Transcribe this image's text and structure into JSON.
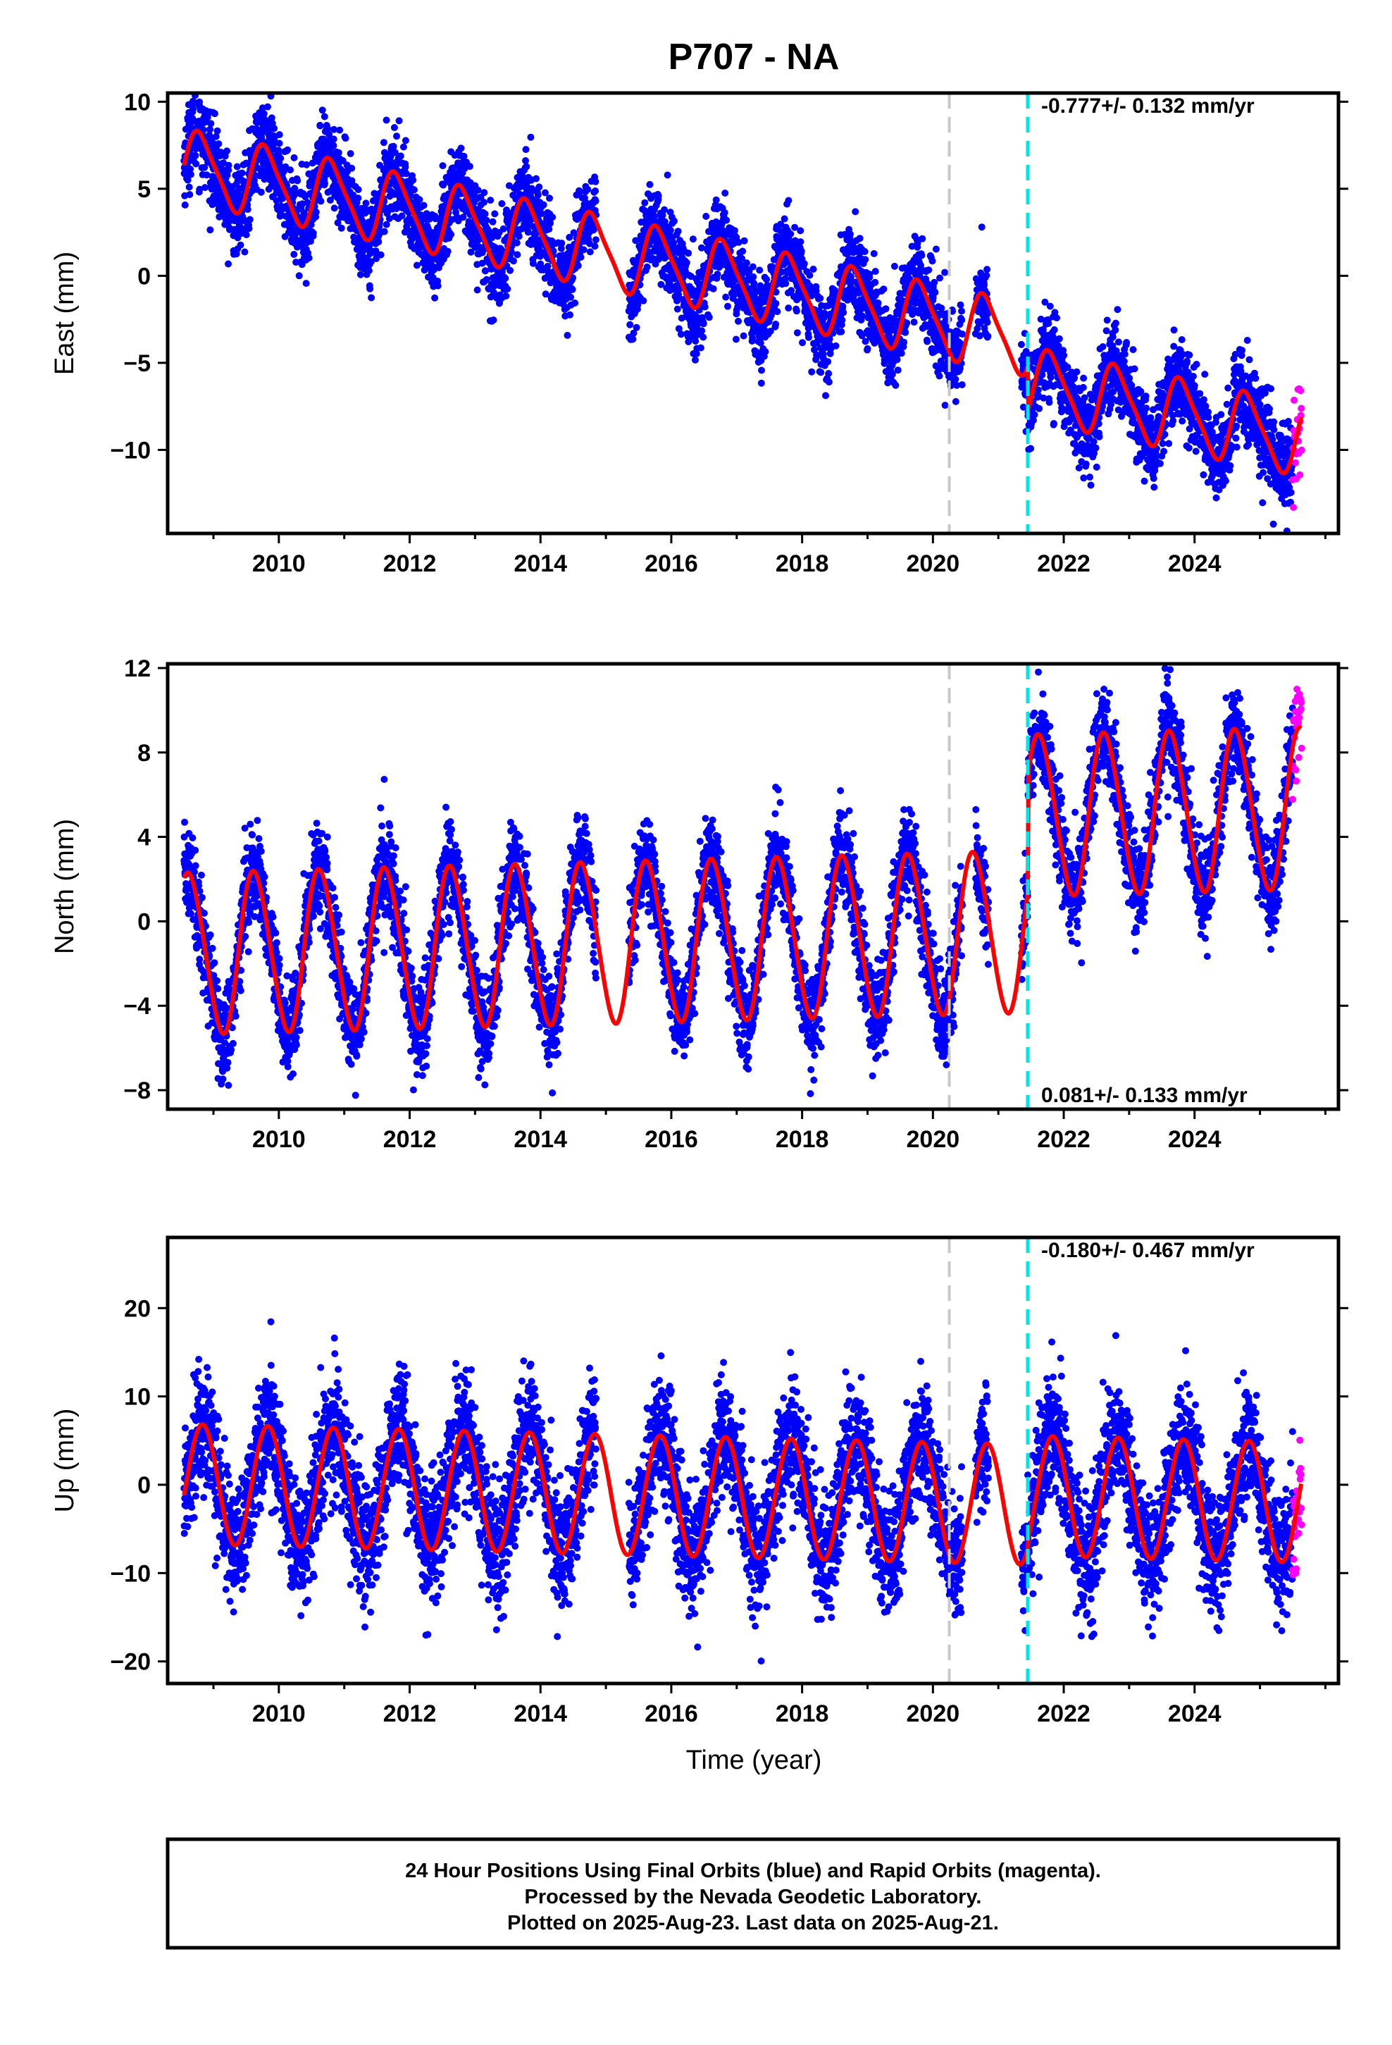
{
  "title": "P707 - NA",
  "xlabel": "Time (year)",
  "footer": [
    "24 Hour Positions Using Final Orbits (blue) and Rapid Orbits (magenta).",
    "Processed by the Nevada Geodetic Laboratory.",
    "Plotted on 2025-Aug-23. Last data on 2025-Aug-21."
  ],
  "colors": {
    "final_orbits": "#0000ff",
    "rapid_orbits": "#ff00ff",
    "model_fit": "#ff0000",
    "equipment_change": "#c8c8c8",
    "offset_epoch": "#00e5e5"
  },
  "chart_data": [
    {
      "type": "scatter",
      "component": "East",
      "ylabel": "East (mm)",
      "rate_label": "-0.777+/- 0.132 mm/yr",
      "rate_position": "top-right",
      "xlim": [
        2008.3,
        2026.2
      ],
      "ylim": [
        -14.8,
        10.5
      ],
      "xticks": [
        2010,
        2012,
        2014,
        2016,
        2018,
        2020,
        2022,
        2024
      ],
      "yticks": [
        10,
        5,
        0,
        -5,
        -10
      ],
      "grid": false,
      "data_span": [
        2008.55,
        2025.63
      ],
      "gaps": [
        [
          2014.85,
          2015.35
        ],
        [
          2020.45,
          2020.65
        ],
        [
          2020.85,
          2021.35
        ]
      ],
      "rapid_span": [
        2025.5,
        2025.64
      ],
      "vlines": [
        {
          "x": 2020.25,
          "kind": "equipment_change"
        },
        {
          "x": 2021.45,
          "kind": "offset_epoch"
        }
      ],
      "model": {
        "intercept_2009": 6.0,
        "rate": -0.777,
        "annual_amp": 2.0,
        "annual_phase": 0.55,
        "semiannual_amp": 0.4,
        "offset_at_2021_45": -2.5,
        "scatter": 1.2
      }
    },
    {
      "type": "scatter",
      "component": "North",
      "ylabel": "North (mm)",
      "rate_label": "0.081+/- 0.133 mm/yr",
      "rate_position": "bottom-right",
      "xlim": [
        2008.3,
        2026.2
      ],
      "ylim": [
        -8.9,
        12.2
      ],
      "xticks": [
        2010,
        2012,
        2014,
        2016,
        2018,
        2020,
        2022,
        2024
      ],
      "yticks": [
        12,
        8,
        4,
        0,
        -4,
        -8
      ],
      "grid": false,
      "data_span": [
        2008.55,
        2025.63
      ],
      "gaps": [
        [
          2014.85,
          2015.35
        ],
        [
          2020.45,
          2020.65
        ],
        [
          2020.85,
          2021.35
        ]
      ],
      "rapid_span": [
        2025.5,
        2025.64
      ],
      "vlines": [
        {
          "x": 2020.25,
          "kind": "equipment_change"
        },
        {
          "x": 2021.45,
          "kind": "offset_epoch"
        }
      ],
      "model": {
        "intercept_2009": -1.5,
        "rate": 0.081,
        "annual_amp": 3.8,
        "annual_phase": 0.38,
        "semiannual_amp": 0.3,
        "offset_at_2021_45": 5.5,
        "scatter": 1.1
      }
    },
    {
      "type": "scatter",
      "component": "Up",
      "ylabel": "Up (mm)",
      "rate_label": "-0.180+/- 0.467 mm/yr",
      "rate_position": "top-right",
      "xlim": [
        2008.3,
        2026.2
      ],
      "ylim": [
        -22.5,
        28.0
      ],
      "xticks": [
        2010,
        2012,
        2014,
        2016,
        2018,
        2020,
        2022,
        2024
      ],
      "yticks": [
        20,
        10,
        0,
        -10,
        -20
      ],
      "grid": false,
      "data_span": [
        2008.55,
        2025.63
      ],
      "gaps": [
        [
          2014.85,
          2015.35
        ],
        [
          2020.45,
          2020.65
        ],
        [
          2020.85,
          2021.35
        ]
      ],
      "rapid_span": [
        2025.5,
        2025.64
      ],
      "vlines": [
        {
          "x": 2020.25,
          "kind": "equipment_change"
        },
        {
          "x": 2021.45,
          "kind": "offset_epoch"
        }
      ],
      "model": {
        "intercept_2009": 0.0,
        "rate": -0.18,
        "annual_amp": 6.8,
        "annual_phase": 0.58,
        "semiannual_amp": 0.0,
        "offset_at_2021_45": 1.0,
        "scatter": 3.5
      }
    }
  ]
}
